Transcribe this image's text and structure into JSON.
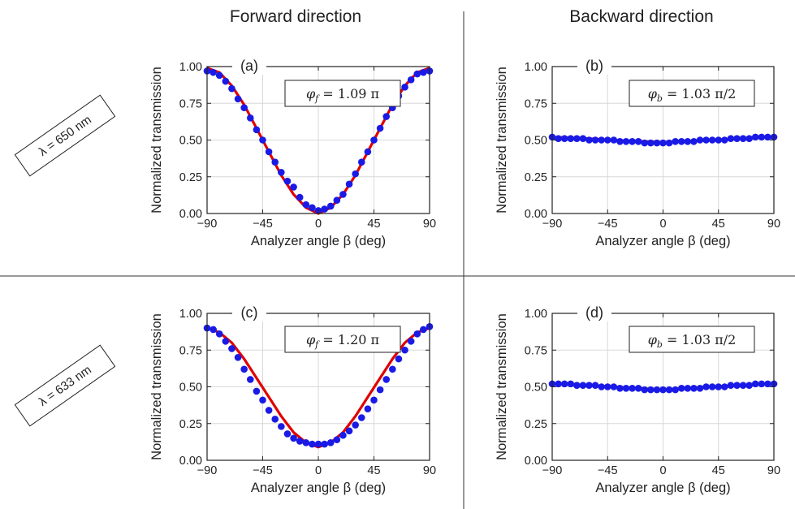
{
  "columns": {
    "forward": "Forward direction",
    "backward": "Backward direction"
  },
  "rows": [
    {
      "label": "λ = 650 nm"
    },
    {
      "label": "λ = 633 nm"
    }
  ],
  "colors": {
    "fit": "#e00000",
    "data": "#1a1ae6",
    "grid": "#d8d8d8",
    "divider": "#333333"
  },
  "chart_data": [
    {
      "type": "scatter",
      "panel": "(a)",
      "annotation": {
        "symbol": "φ",
        "sub": "f",
        "text": " = 1.09 π"
      },
      "xlabel": "Analyzer angle β (deg)",
      "ylabel": "Normalized transmission",
      "xlim": [
        -90,
        90
      ],
      "ylim": [
        0,
        1
      ],
      "xticks": [
        "−90",
        "−45",
        "0",
        "45",
        "90"
      ],
      "yticks": [
        "0.00",
        "0.25",
        "0.50",
        "0.75",
        "1.00"
      ],
      "grid": true,
      "series": [
        {
          "kind": "points",
          "x": [
            -90,
            -85,
            -80,
            -75,
            -70,
            -65,
            -60,
            -55,
            -50,
            -45,
            -40,
            -35,
            -30,
            -25,
            -20,
            -15,
            -10,
            -5,
            0,
            5,
            10,
            15,
            20,
            25,
            30,
            35,
            40,
            45,
            50,
            55,
            60,
            65,
            70,
            75,
            80,
            85,
            90
          ],
          "y": [
            0.97,
            0.96,
            0.94,
            0.9,
            0.85,
            0.78,
            0.72,
            0.65,
            0.57,
            0.5,
            0.42,
            0.35,
            0.28,
            0.22,
            0.18,
            0.11,
            0.06,
            0.04,
            0.02,
            0.03,
            0.05,
            0.09,
            0.13,
            0.2,
            0.27,
            0.35,
            0.42,
            0.5,
            0.58,
            0.66,
            0.72,
            0.8,
            0.86,
            0.91,
            0.95,
            0.96,
            0.97
          ]
        },
        {
          "kind": "curve",
          "x": [
            -90,
            -80,
            -70,
            -60,
            -50,
            -40,
            -30,
            -20,
            -10,
            0,
            10,
            20,
            30,
            40,
            50,
            60,
            70,
            80,
            90
          ],
          "y": [
            0.99,
            0.96,
            0.87,
            0.74,
            0.58,
            0.42,
            0.26,
            0.13,
            0.04,
            0.0,
            0.04,
            0.13,
            0.26,
            0.42,
            0.58,
            0.74,
            0.87,
            0.96,
            0.99
          ]
        }
      ]
    },
    {
      "type": "scatter",
      "panel": "(b)",
      "annotation": {
        "symbol": "φ",
        "sub": "b",
        "text": " = 1.03 π/2"
      },
      "xlabel": "Analyzer angle β (deg)",
      "ylabel": "Normalized transmission",
      "xlim": [
        -90,
        90
      ],
      "ylim": [
        0,
        1
      ],
      "xticks": [
        "−90",
        "−45",
        "0",
        "45",
        "90"
      ],
      "yticks": [
        "0.00",
        "0.25",
        "0.50",
        "0.75",
        "1.00"
      ],
      "grid": true,
      "series": [
        {
          "kind": "points",
          "x": [
            -90,
            -85,
            -80,
            -75,
            -70,
            -65,
            -60,
            -55,
            -50,
            -45,
            -40,
            -35,
            -30,
            -25,
            -20,
            -15,
            -10,
            -5,
            0,
            5,
            10,
            15,
            20,
            25,
            30,
            35,
            40,
            45,
            50,
            55,
            60,
            65,
            70,
            75,
            80,
            85,
            90
          ],
          "y": [
            0.52,
            0.51,
            0.51,
            0.51,
            0.51,
            0.51,
            0.5,
            0.5,
            0.5,
            0.5,
            0.5,
            0.49,
            0.49,
            0.49,
            0.49,
            0.48,
            0.48,
            0.48,
            0.48,
            0.48,
            0.49,
            0.49,
            0.49,
            0.49,
            0.5,
            0.5,
            0.5,
            0.5,
            0.5,
            0.51,
            0.51,
            0.51,
            0.51,
            0.52,
            0.52,
            0.52,
            0.52
          ]
        },
        {
          "kind": "curve",
          "x": [
            -90,
            -60,
            -30,
            0,
            30,
            60,
            90
          ],
          "y": [
            0.52,
            0.51,
            0.495,
            0.485,
            0.495,
            0.51,
            0.52
          ]
        }
      ]
    },
    {
      "type": "scatter",
      "panel": "(c)",
      "annotation": {
        "symbol": "φ",
        "sub": "f",
        "text": " = 1.20 π"
      },
      "xlabel": "Analyzer angle β (deg)",
      "ylabel": "Normalized transmission",
      "xlim": [
        -90,
        90
      ],
      "ylim": [
        0,
        1
      ],
      "xticks": [
        "−90",
        "−45",
        "0",
        "45",
        "90"
      ],
      "yticks": [
        "0.00",
        "0.25",
        "0.50",
        "0.75",
        "1.00"
      ],
      "grid": true,
      "series": [
        {
          "kind": "points",
          "x": [
            -90,
            -85,
            -80,
            -75,
            -70,
            -65,
            -60,
            -55,
            -50,
            -45,
            -40,
            -35,
            -30,
            -25,
            -20,
            -15,
            -10,
            -5,
            0,
            5,
            10,
            15,
            20,
            25,
            30,
            35,
            40,
            45,
            50,
            55,
            60,
            65,
            70,
            75,
            80,
            85,
            90
          ],
          "y": [
            0.9,
            0.89,
            0.86,
            0.81,
            0.76,
            0.7,
            0.62,
            0.55,
            0.47,
            0.41,
            0.34,
            0.28,
            0.23,
            0.18,
            0.15,
            0.13,
            0.12,
            0.11,
            0.11,
            0.11,
            0.12,
            0.14,
            0.17,
            0.2,
            0.24,
            0.29,
            0.35,
            0.41,
            0.48,
            0.55,
            0.62,
            0.69,
            0.75,
            0.81,
            0.86,
            0.89,
            0.91
          ]
        },
        {
          "kind": "curve",
          "x": [
            -90,
            -80,
            -70,
            -60,
            -50,
            -40,
            -30,
            -20,
            -10,
            0,
            10,
            20,
            30,
            40,
            50,
            60,
            70,
            80,
            90
          ],
          "y": [
            0.9,
            0.87,
            0.8,
            0.69,
            0.56,
            0.43,
            0.3,
            0.19,
            0.12,
            0.09,
            0.12,
            0.19,
            0.3,
            0.43,
            0.56,
            0.69,
            0.8,
            0.87,
            0.9
          ]
        }
      ]
    },
    {
      "type": "scatter",
      "panel": "(d)",
      "annotation": {
        "symbol": "φ",
        "sub": "b",
        "text": " = 1.03 π/2"
      },
      "xlabel": "Analyzer angle β (deg)",
      "ylabel": "Normalized transmission",
      "xlim": [
        -90,
        90
      ],
      "ylim": [
        0,
        1
      ],
      "xticks": [
        "−90",
        "−45",
        "0",
        "45",
        "90"
      ],
      "yticks": [
        "0.00",
        "0.25",
        "0.50",
        "0.75",
        "1.00"
      ],
      "grid": true,
      "series": [
        {
          "kind": "points",
          "x": [
            -90,
            -85,
            -80,
            -75,
            -70,
            -65,
            -60,
            -55,
            -50,
            -45,
            -40,
            -35,
            -30,
            -25,
            -20,
            -15,
            -10,
            -5,
            0,
            5,
            10,
            15,
            20,
            25,
            30,
            35,
            40,
            45,
            50,
            55,
            60,
            65,
            70,
            75,
            80,
            85,
            90
          ],
          "y": [
            0.52,
            0.52,
            0.52,
            0.52,
            0.51,
            0.51,
            0.51,
            0.51,
            0.5,
            0.5,
            0.5,
            0.49,
            0.49,
            0.49,
            0.49,
            0.48,
            0.48,
            0.48,
            0.48,
            0.48,
            0.48,
            0.49,
            0.49,
            0.49,
            0.49,
            0.5,
            0.5,
            0.5,
            0.5,
            0.51,
            0.51,
            0.51,
            0.51,
            0.52,
            0.52,
            0.52,
            0.52
          ]
        },
        {
          "kind": "curve",
          "x": [
            -90,
            -60,
            -30,
            0,
            30,
            60,
            90
          ],
          "y": [
            0.52,
            0.51,
            0.495,
            0.48,
            0.495,
            0.51,
            0.52
          ]
        }
      ]
    }
  ]
}
